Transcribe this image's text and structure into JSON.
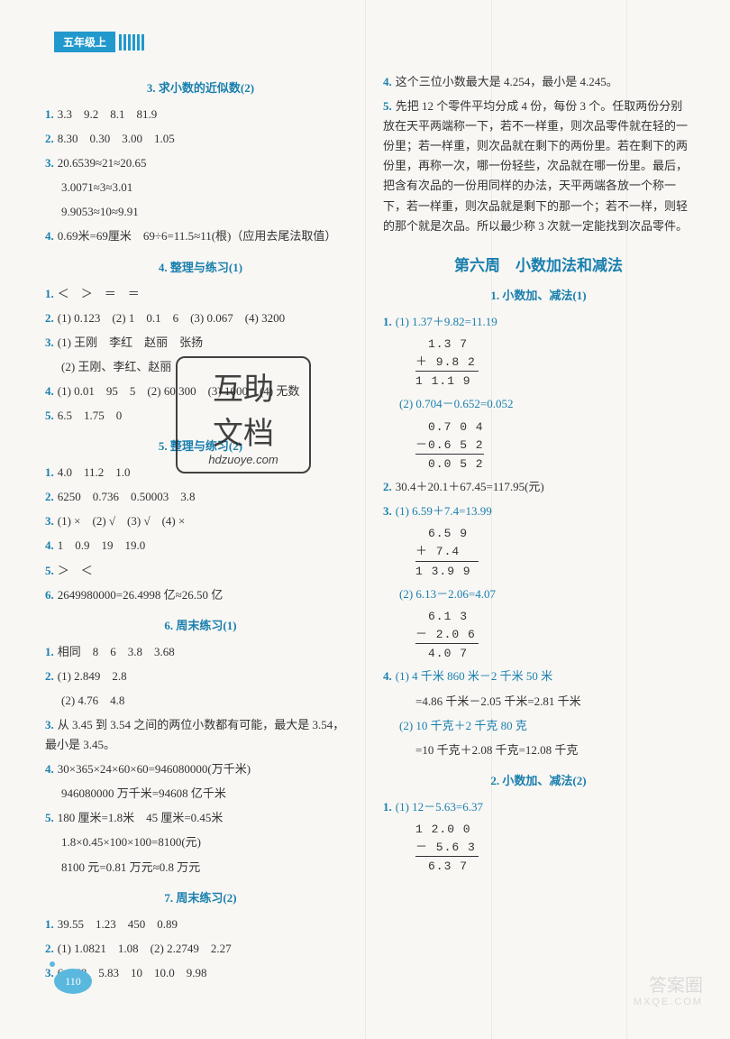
{
  "header": {
    "grade_label": "五年级上"
  },
  "page_number": "110",
  "colors": {
    "accent": "#1a7fae",
    "badge_bg": "#2299cc",
    "text": "#333333",
    "page_bg": "#f8f7f4",
    "bubble": "#5ab8de"
  },
  "left": {
    "s3": {
      "title": "3. 求小数的近似数(2)",
      "q1": "3.3　9.2　8.1　81.9",
      "q2": "8.30　0.30　3.00　1.05",
      "q3a": "20.6539≈21≈20.65",
      "q3b": "3.0071≈3≈3.01",
      "q3c": "9.9053≈10≈9.91",
      "q4": "0.69米=69厘米　69÷6=11.5≈11(根)（应用去尾法取值）"
    },
    "s4": {
      "title": "4. 整理与练习(1)",
      "q1": "＜　＞　＝　＝",
      "q2": "(1) 0.123　(2) 1　0.1　6　(3) 0.067　(4) 3200",
      "q3a": "(1) 王刚　李红　赵丽　张扬",
      "q3b": "(2) 王刚、李红、赵丽",
      "q4": "(1) 0.01　95　5　(2) 60 300　(3) 1000　(4) 无数",
      "q5": "6.5　1.75　0"
    },
    "s5": {
      "title": "5. 整理与练习(2)",
      "q1": "4.0　11.2　1.0",
      "q2": "6250　0.736　0.50003　3.8",
      "q3": "(1) ×　(2) √　(3) √　(4) ×",
      "q4": "1　0.9　19　19.0",
      "q5": "＞　＜",
      "q6": "2649980000=26.4998 亿≈26.50 亿"
    },
    "s6": {
      "title": "6. 周末练习(1)",
      "q1": "相同　8　6　3.8　3.68",
      "q2a": "(1) 2.849　2.8",
      "q2b": "(2) 4.76　4.8",
      "q3": "从 3.45 到 3.54 之间的两位小数都有可能，最大是 3.54，最小是 3.45。",
      "q4a": "30×365×24×60×60=946080000(万千米)",
      "q4b": "946080000 万千米=94608 亿千米",
      "q5a": "180 厘米=1.8米　45 厘米=0.45米",
      "q5b": "1.8×0.45×100×100=8100(元)",
      "q5c": "8100 元=0.81 万元≈0.8 万元"
    },
    "s7": {
      "title": "7. 周末练习(2)",
      "q1": "39.55　1.23　450　0.89",
      "q2": "(1) 1.0821　1.08　(2) 2.2749　2.27",
      "q3": "6　58　5.83　10　10.0　9.98"
    }
  },
  "right": {
    "top": {
      "q4": "这个三位小数最大是 4.254，最小是 4.245。",
      "q5": "先把 12 个零件平均分成 4 份，每份 3 个。任取两份分别放在天平两端称一下，若不一样重，则次品零件就在轻的一份里；若一样重，则次品就在剩下的两份里。若在剩下的两份里，再称一次，哪一份轻些，次品就在哪一份里。最后，把含有次品的一份用同样的办法，天平两端各放一个称一下，若一样重，则次品就是剩下的那一个；若不一样，则轻的那个就是次品。所以最少称 3 次就一定能找到次品零件。"
    },
    "week6": {
      "title": "第六周　小数加法和减法",
      "s1": {
        "title": "1. 小数加、减法(1)",
        "q1_1_eq": "(1) 1.37＋9.82=11.19",
        "q1_1_r1": "　1.3 7",
        "q1_1_r2": "＋ 9.8 2",
        "q1_1_r3": "1 1.1 9",
        "q1_2_eq": "(2) 0.704－0.652=0.052",
        "q1_2_r1": "　0.7 0 4",
        "q1_2_r2": "－0.6 5 2",
        "q1_2_r3": "　0.0 5 2",
        "q2": "30.4＋20.1＋67.45=117.95(元)",
        "q3_1_eq": "(1) 6.59＋7.4=13.99",
        "q3_1_r1": "　6.5 9",
        "q3_1_r2": "＋ 7.4　",
        "q3_1_r3": "1 3.9 9",
        "q3_2_eq": "(2) 6.13－2.06=4.07",
        "q3_2_r1": "　6.1 3",
        "q3_2_r2": "－ 2.0 6",
        "q3_2_r3": "　4.0 7",
        "q4_1a": "(1) 4 千米 860 米－2 千米 50 米",
        "q4_1b": "=4.86 千米－2.05 千米=2.81 千米",
        "q4_2a": "(2) 10 千克＋2 千克 80 克",
        "q4_2b": "=10 千克＋2.08 千克=12.08 千克"
      },
      "s2": {
        "title": "2. 小数加、减法(2)",
        "q1_1_eq": "(1) 12－5.63=6.37",
        "q1_1_r1": "1 2.0 0",
        "q1_1_r2": "－ 5.6 3",
        "q1_1_r3": "　6.3 7"
      }
    }
  },
  "stamp": {
    "line1": "互助",
    "line2": "文档",
    "site": "hdzuoye.com"
  },
  "corner": {
    "text": "答案圈",
    "site": "MXQE.COM"
  }
}
